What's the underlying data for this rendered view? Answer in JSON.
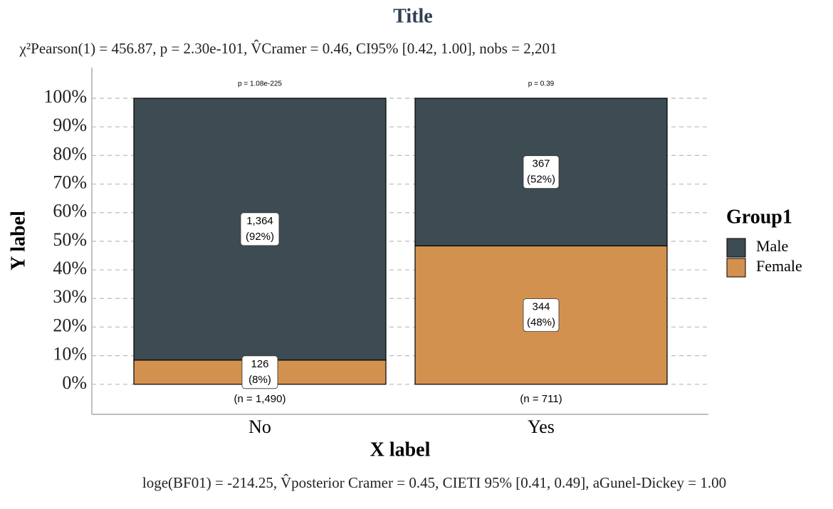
{
  "chart_data": {
    "type": "stacked_bar_percent",
    "title": "Title",
    "subtitle": "χ²Pearson(1) = 456.87, p = 2.30e-101, V̂Cramer = 0.46, CI95% [0.42, 1.00], nobs = 2,201",
    "caption": "loge(BF01) = -214.25, V̂posterior Cramer = 0.45, CIETI 95% [0.41, 0.49], aGunel-Dickey = 1.00",
    "x_label": "X label",
    "y_label": "Y label",
    "categories": [
      "No",
      "Yes"
    ],
    "category_p_labels": [
      "p = 1.08e-225",
      "p = 0.39"
    ],
    "category_n_labels": [
      "(n = 1,490)",
      "(n = 711)"
    ],
    "legend_title": "Group1",
    "series": [
      {
        "name": "Male",
        "color": "#3d4b52",
        "values": [
          91.54,
          51.62
        ],
        "value_labels": [
          "(92%)",
          "(52%)"
        ],
        "counts": [
          1364,
          367
        ],
        "count_labels": [
          "1,364",
          "367"
        ]
      },
      {
        "name": "Female",
        "color": "#d39150",
        "values": [
          8.46,
          48.38
        ],
        "value_labels": [
          "(8%)",
          "(48%)"
        ],
        "counts": [
          126,
          344
        ],
        "count_labels": [
          "126",
          "344"
        ]
      }
    ],
    "ylim": [
      -10.5,
      110.7
    ],
    "yticks": [
      {
        "value": 0,
        "label": "0%"
      },
      {
        "value": 10,
        "label": "10%"
      },
      {
        "value": 20,
        "label": "20%"
      },
      {
        "value": 30,
        "label": "30%"
      },
      {
        "value": 40,
        "label": "40%"
      },
      {
        "value": 50,
        "label": "50%"
      },
      {
        "value": 60,
        "label": "60%"
      },
      {
        "value": 70,
        "label": "70%"
      },
      {
        "value": 80,
        "label": "80%"
      },
      {
        "value": 90,
        "label": "90%"
      },
      {
        "value": 100,
        "label": "100%"
      }
    ],
    "grid": true
  }
}
